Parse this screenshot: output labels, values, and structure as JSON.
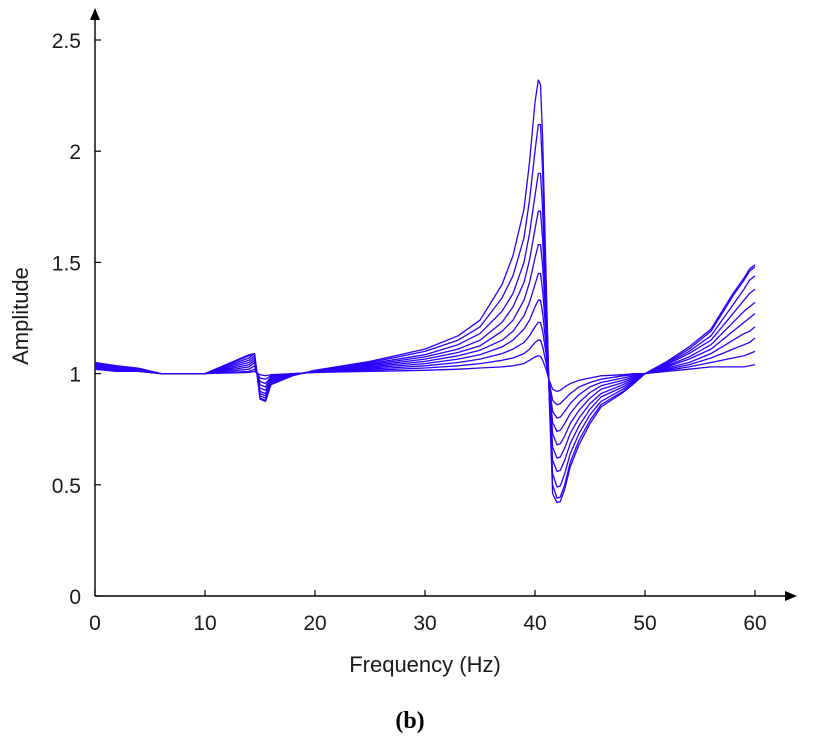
{
  "chart_data": {
    "type": "line",
    "title": "",
    "panel_label": "(b)",
    "xlabel": "Frequency (Hz)",
    "ylabel": "Amplitude",
    "xlim": [
      0,
      60
    ],
    "ylim": [
      0,
      2.5
    ],
    "x_ticks": [
      "0",
      "10",
      "20",
      "30",
      "40",
      "50",
      "60"
    ],
    "y_ticks": [
      "0",
      "0.5",
      "1",
      "1.5",
      "2",
      "2.5"
    ],
    "grid": false,
    "legend": "none",
    "line_color": "#2a00ff",
    "x": [
      0,
      2,
      4,
      6,
      10,
      14,
      14.5,
      15,
      15.5,
      16,
      18,
      20,
      25,
      30,
      33,
      35,
      37,
      38,
      39,
      39.5,
      40,
      40.3,
      40.5,
      40.7,
      41,
      41.3,
      41.6,
      42,
      42.3,
      42.7,
      43.2,
      44,
      45,
      46,
      48,
      49,
      50,
      52,
      54,
      56,
      57,
      58,
      59,
      59.5,
      60
    ],
    "series": [
      {
        "values": [
          1.02,
          1.01,
          1.01,
          1.0,
          1.0,
          1.005,
          1.01,
          0.995,
          0.99,
          0.995,
          1.0,
          1.005,
          1.01,
          1.015,
          1.02,
          1.025,
          1.03,
          1.035,
          1.045,
          1.06,
          1.075,
          1.08,
          1.078,
          1.06,
          1.02,
          0.97,
          0.93,
          0.92,
          0.925,
          0.94,
          0.955,
          0.97,
          0.98,
          0.99,
          0.995,
          1.0,
          1.0,
          1.01,
          1.02,
          1.03,
          1.03,
          1.03,
          1.03,
          1.035,
          1.04
        ]
      },
      {
        "values": [
          1.02,
          1.01,
          1.01,
          1.0,
          1.0,
          1.01,
          1.02,
          0.98,
          0.975,
          0.99,
          1.0,
          1.006,
          1.015,
          1.025,
          1.035,
          1.045,
          1.06,
          1.07,
          1.09,
          1.11,
          1.14,
          1.15,
          1.15,
          1.12,
          1.05,
          0.96,
          0.88,
          0.86,
          0.865,
          0.885,
          0.91,
          0.94,
          0.96,
          0.975,
          0.99,
          0.995,
          1.0,
          1.015,
          1.03,
          1.05,
          1.06,
          1.07,
          1.08,
          1.09,
          1.1
        ]
      },
      {
        "values": [
          1.025,
          1.015,
          1.01,
          1.0,
          1.0,
          1.02,
          1.035,
          0.965,
          0.955,
          0.985,
          0.998,
          1.007,
          1.02,
          1.035,
          1.05,
          1.065,
          1.09,
          1.11,
          1.14,
          1.17,
          1.21,
          1.23,
          1.23,
          1.19,
          1.09,
          0.95,
          0.83,
          0.8,
          0.805,
          0.83,
          0.865,
          0.905,
          0.94,
          0.96,
          0.98,
          0.99,
          1.0,
          1.02,
          1.04,
          1.07,
          1.09,
          1.11,
          1.13,
          1.14,
          1.16
        ]
      },
      {
        "values": [
          1.03,
          1.02,
          1.012,
          1.0,
          1.0,
          1.03,
          1.05,
          0.95,
          0.94,
          0.98,
          0.997,
          1.008,
          1.025,
          1.045,
          1.065,
          1.085,
          1.12,
          1.15,
          1.2,
          1.24,
          1.3,
          1.33,
          1.33,
          1.27,
          1.13,
          0.94,
          0.78,
          0.74,
          0.745,
          0.775,
          0.82,
          0.87,
          0.915,
          0.945,
          0.97,
          0.985,
          1.0,
          1.025,
          1.05,
          1.09,
          1.12,
          1.15,
          1.18,
          1.19,
          1.21
        ]
      },
      {
        "values": [
          1.03,
          1.02,
          1.014,
          1.0,
          1.0,
          1.04,
          1.06,
          0.935,
          0.925,
          0.975,
          0.996,
          1.01,
          1.03,
          1.055,
          1.08,
          1.105,
          1.15,
          1.19,
          1.26,
          1.32,
          1.4,
          1.45,
          1.45,
          1.37,
          1.18,
          0.93,
          0.73,
          0.68,
          0.685,
          0.72,
          0.775,
          0.835,
          0.89,
          0.93,
          0.96,
          0.98,
          1.0,
          1.03,
          1.065,
          1.11,
          1.15,
          1.19,
          1.23,
          1.25,
          1.27
        ]
      },
      {
        "values": [
          1.035,
          1.025,
          1.016,
          1.0,
          1.0,
          1.05,
          1.07,
          0.92,
          0.91,
          0.97,
          0.995,
          1.011,
          1.035,
          1.065,
          1.095,
          1.125,
          1.19,
          1.24,
          1.33,
          1.41,
          1.52,
          1.58,
          1.58,
          1.48,
          1.23,
          0.92,
          0.67,
          0.62,
          0.625,
          0.665,
          0.73,
          0.8,
          0.865,
          0.91,
          0.95,
          0.975,
          1.0,
          1.035,
          1.075,
          1.13,
          1.18,
          1.23,
          1.28,
          1.3,
          1.32
        ]
      },
      {
        "values": [
          1.04,
          1.025,
          1.018,
          1.0,
          1.0,
          1.06,
          1.08,
          0.91,
          0.9,
          0.965,
          0.994,
          1.012,
          1.04,
          1.075,
          1.11,
          1.15,
          1.23,
          1.3,
          1.41,
          1.51,
          1.65,
          1.73,
          1.73,
          1.6,
          1.28,
          0.91,
          0.61,
          0.56,
          0.565,
          0.61,
          0.685,
          0.765,
          0.84,
          0.895,
          0.94,
          0.97,
          1.0,
          1.04,
          1.09,
          1.15,
          1.21,
          1.27,
          1.33,
          1.36,
          1.38
        ]
      },
      {
        "values": [
          1.045,
          1.03,
          1.02,
          1.0,
          1.0,
          1.07,
          1.09,
          0.9,
          0.89,
          0.96,
          0.993,
          1.013,
          1.045,
          1.085,
          1.13,
          1.18,
          1.28,
          1.36,
          1.5,
          1.63,
          1.8,
          1.9,
          1.9,
          1.73,
          1.33,
          0.9,
          0.55,
          0.49,
          0.495,
          0.55,
          0.64,
          0.73,
          0.815,
          0.875,
          0.93,
          0.965,
          1.0,
          1.045,
          1.1,
          1.17,
          1.24,
          1.31,
          1.38,
          1.42,
          1.44
        ]
      },
      {
        "values": [
          1.05,
          1.03,
          1.022,
          1.0,
          1.0,
          1.08,
          1.09,
          0.89,
          0.88,
          0.955,
          0.992,
          1.014,
          1.05,
          1.1,
          1.15,
          1.21,
          1.34,
          1.44,
          1.61,
          1.78,
          2.0,
          2.12,
          2.12,
          1.9,
          1.39,
          0.89,
          0.5,
          0.44,
          0.445,
          0.5,
          0.6,
          0.7,
          0.79,
          0.86,
          0.92,
          0.96,
          1.0,
          1.05,
          1.11,
          1.19,
          1.27,
          1.35,
          1.42,
          1.46,
          1.48
        ]
      },
      {
        "values": [
          1.05,
          1.035,
          1.024,
          1.0,
          1.0,
          1.085,
          1.09,
          0.885,
          0.875,
          0.95,
          0.991,
          1.015,
          1.055,
          1.11,
          1.17,
          1.24,
          1.4,
          1.53,
          1.74,
          1.95,
          2.22,
          2.32,
          2.3,
          2.05,
          1.45,
          0.88,
          0.46,
          0.42,
          0.425,
          0.48,
          0.58,
          0.68,
          0.775,
          0.85,
          0.915,
          0.955,
          1.0,
          1.055,
          1.12,
          1.2,
          1.28,
          1.36,
          1.43,
          1.47,
          1.49
        ]
      }
    ]
  }
}
